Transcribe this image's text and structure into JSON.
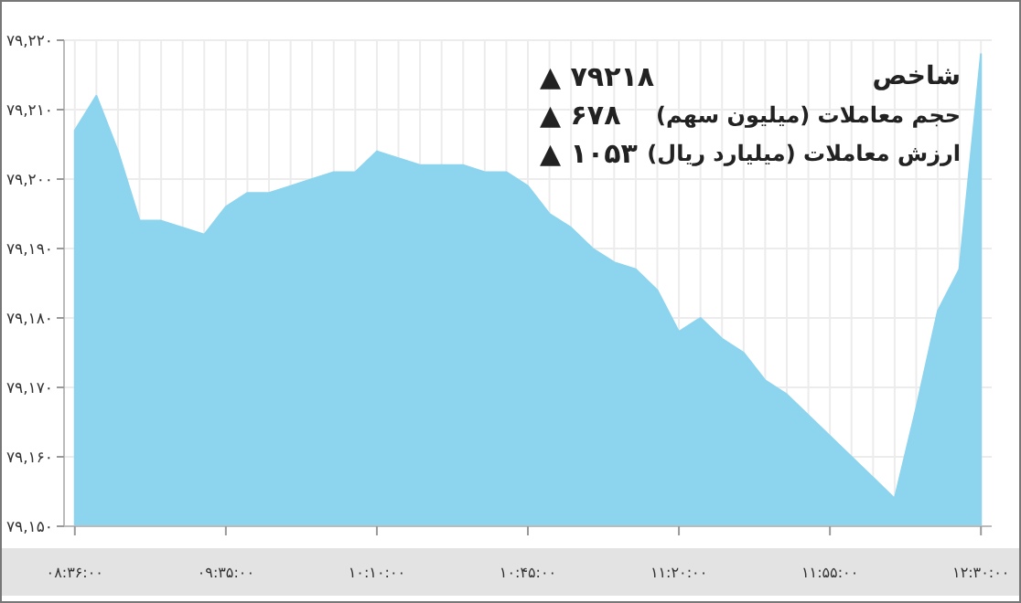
{
  "chart_data": {
    "type": "area",
    "categories": [
      "۰۸:۳۶:۰۰",
      null,
      null,
      null,
      null,
      null,
      null,
      "۰۹:۳۵:۰۰",
      null,
      null,
      null,
      null,
      null,
      null,
      "۱۰:۱۰:۰۰",
      null,
      null,
      null,
      null,
      null,
      null,
      "۱۰:۴۵:۰۰",
      null,
      null,
      null,
      null,
      null,
      null,
      "۱۱:۲۰:۰۰",
      null,
      null,
      null,
      null,
      null,
      null,
      "۱۱:۵۵:۰۰",
      null,
      null,
      null,
      null,
      null,
      null,
      "۱۲:۳۰:۰۰"
    ],
    "series": [
      {
        "color": "#8dd4ee",
        "values": [
          79207,
          79212,
          79204,
          79194,
          79194,
          79193,
          79192,
          79196,
          79198,
          79198,
          79199,
          79200,
          79201,
          79201,
          79204,
          79203,
          79202,
          79202,
          79202,
          79201,
          79201,
          79199,
          79195,
          79193,
          79190,
          79188,
          79187,
          79184,
          79178,
          79180,
          79177,
          79175,
          79171,
          79169,
          79166,
          79163,
          79160,
          79157,
          79154,
          79167,
          79181,
          79187,
          79218
        ]
      }
    ],
    "ylim": [
      79150,
      79220
    ],
    "yticks": [
      {
        "value": 79150,
        "label": "۷۹,۱۵۰"
      },
      {
        "value": 79160,
        "label": "۷۹,۱۶۰"
      },
      {
        "value": 79170,
        "label": "۷۹,۱۷۰"
      },
      {
        "value": 79180,
        "label": "۷۹,۱۸۰"
      },
      {
        "value": 79190,
        "label": "۷۹,۱۹۰"
      },
      {
        "value": 79200,
        "label": "۷۹,۲۰۰"
      },
      {
        "value": 79210,
        "label": "۷۹,۲۱۰"
      },
      {
        "value": 79220,
        "label": "۷۹,۲۲۰"
      }
    ],
    "grid": true,
    "annotations": [
      "شاخص",
      "▲ ۷۹۲۱۸",
      "حجم معاملات (میلیون سهم)",
      "▲ ۶۷۸",
      "ارزش معاملات (میلیارد ریال)",
      "▲ ۱۰۵۳"
    ]
  }
}
